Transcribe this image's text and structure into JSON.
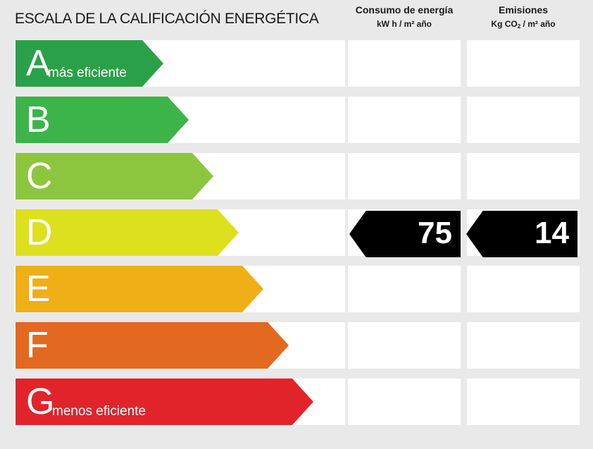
{
  "title": "ESCALA DE LA CALIFICACIÓN ENERGÉTICA",
  "columns": {
    "energy": {
      "title": "Consumo de energía",
      "unit": "kW h / m² año"
    },
    "emissions": {
      "title": "Emisiones",
      "unit_prefix": "Kg CO",
      "unit_sub": "2",
      "unit_suffix": " / m² año"
    }
  },
  "ratings": [
    {
      "letter": "A",
      "note": "más eficiente",
      "color": "#2aa148"
    },
    {
      "letter": "B",
      "note": "",
      "color": "#3cb44a"
    },
    {
      "letter": "C",
      "note": "",
      "color": "#8cc63f"
    },
    {
      "letter": "D",
      "note": "",
      "color": "#dde01c"
    },
    {
      "letter": "E",
      "note": "",
      "color": "#f0ae17"
    },
    {
      "letter": "F",
      "note": "",
      "color": "#e2691f"
    },
    {
      "letter": "G",
      "note": "menos eficiente",
      "color": "#e1242a"
    }
  ],
  "result": {
    "letter": "D",
    "energy_value": "75",
    "emissions_value": "14"
  }
}
